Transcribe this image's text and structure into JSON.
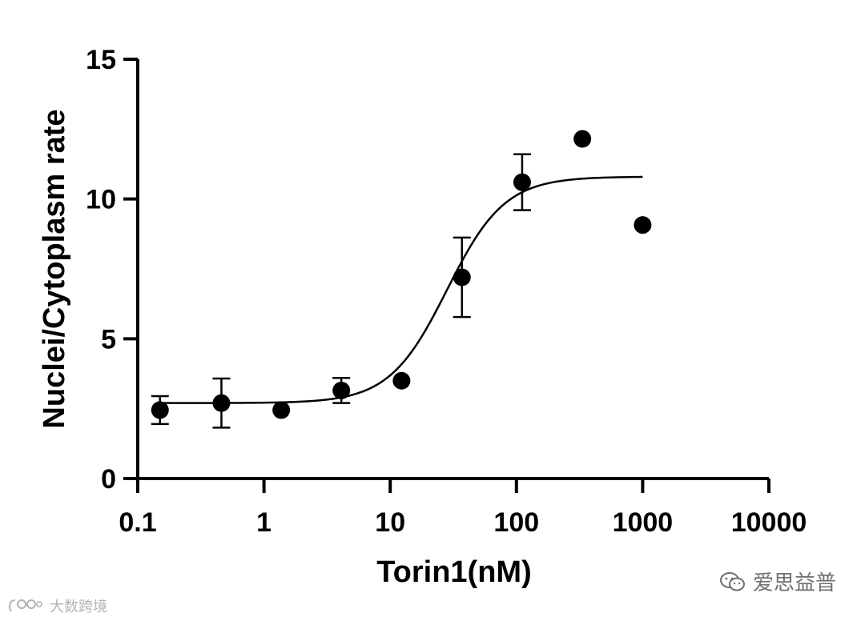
{
  "chart_data": {
    "type": "scatter",
    "xlabel": "Torin1(nM)",
    "ylabel": "Nuclei/Cytoplasm rate",
    "xscale": "log",
    "xlim": [
      0.1,
      10000
    ],
    "ylim": [
      0,
      15
    ],
    "x_ticks": [
      0.1,
      1,
      10,
      100,
      1000,
      10000
    ],
    "x_tick_labels": [
      "0.1",
      "1",
      "10",
      "100",
      "1000",
      "10000"
    ],
    "y_ticks": [
      0,
      5,
      10,
      15
    ],
    "y_tick_labels": [
      "0",
      "5",
      "10",
      "15"
    ],
    "grid": false,
    "points": [
      {
        "x": 0.15,
        "y": 2.45,
        "err": 0.5
      },
      {
        "x": 0.46,
        "y": 2.7,
        "err": 0.88
      },
      {
        "x": 1.37,
        "y": 2.45,
        "err": 0
      },
      {
        "x": 4.1,
        "y": 3.15,
        "err": 0.45
      },
      {
        "x": 12.3,
        "y": 3.5,
        "err": 0
      },
      {
        "x": 37,
        "y": 7.2,
        "err": 1.42
      },
      {
        "x": 111,
        "y": 10.6,
        "err": 1.0
      },
      {
        "x": 333,
        "y": 12.15,
        "err": 0
      },
      {
        "x": 1000,
        "y": 9.07,
        "err": 0
      }
    ],
    "fit": {
      "bottom": 2.7,
      "top": 10.8,
      "log_ec50": 1.45,
      "hill_slope": 1.9,
      "x_range": [
        0.15,
        1000
      ]
    },
    "colors": {
      "points": "#000000",
      "fit": "#000000",
      "axes": "#000000"
    }
  },
  "watermarks": {
    "right_text": "爱思益普",
    "right_icon": "wechat-icon",
    "left_text": "大数跨境",
    "left_icon": "brand-logo-icon"
  }
}
